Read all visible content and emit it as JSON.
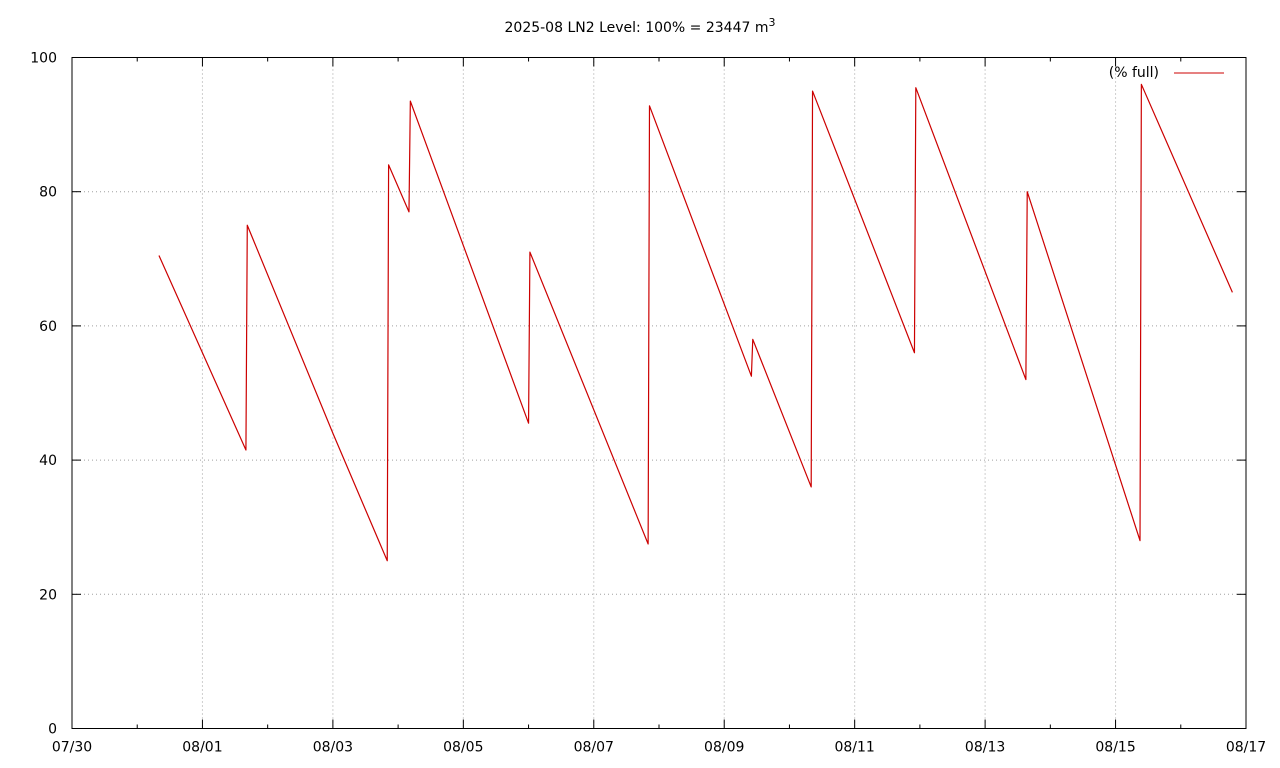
{
  "chart_data": {
    "type": "line",
    "title": {
      "main": "2025-08 LN2 Level: 100% = 23447 m",
      "superscript": "3"
    },
    "x_axis": {
      "ticks": [
        "07/30",
        "08/01",
        "08/03",
        "08/05",
        "08/07",
        "08/09",
        "08/11",
        "08/13",
        "08/15",
        "08/17"
      ],
      "range": [
        "07/30",
        "08/17"
      ],
      "minor_ticks_per_major": 2
    },
    "y_axis": {
      "ticks": [
        0,
        20,
        40,
        60,
        80,
        100
      ],
      "range": [
        0,
        100
      ]
    },
    "grid": true,
    "legend": {
      "position": "top-right"
    },
    "series": [
      {
        "name": "(% full)",
        "color": "#cc0000",
        "x": [
          "07/31 08:00",
          "08/01 16:00",
          "08/01 16:30",
          "08/03 00:00",
          "08/03 20:00",
          "08/03 20:30",
          "08/04 04:00",
          "08/04 04:30",
          "08/06 00:00",
          "08/06 00:30",
          "08/07 20:00",
          "08/07 20:30",
          "08/09 10:00",
          "08/09 10:30",
          "08/10 08:00",
          "08/10 08:30",
          "08/11 22:00",
          "08/11 22:30",
          "08/13 15:00",
          "08/13 15:30",
          "08/15 09:00",
          "08/15 09:30",
          "08/16 19:00"
        ],
        "y": [
          70.5,
          41.5,
          75,
          44,
          25,
          84,
          77,
          93.5,
          45.5,
          71,
          27.5,
          92.8,
          52.5,
          58,
          36,
          95,
          56,
          95.5,
          52,
          80,
          28,
          96,
          65
        ]
      }
    ]
  }
}
